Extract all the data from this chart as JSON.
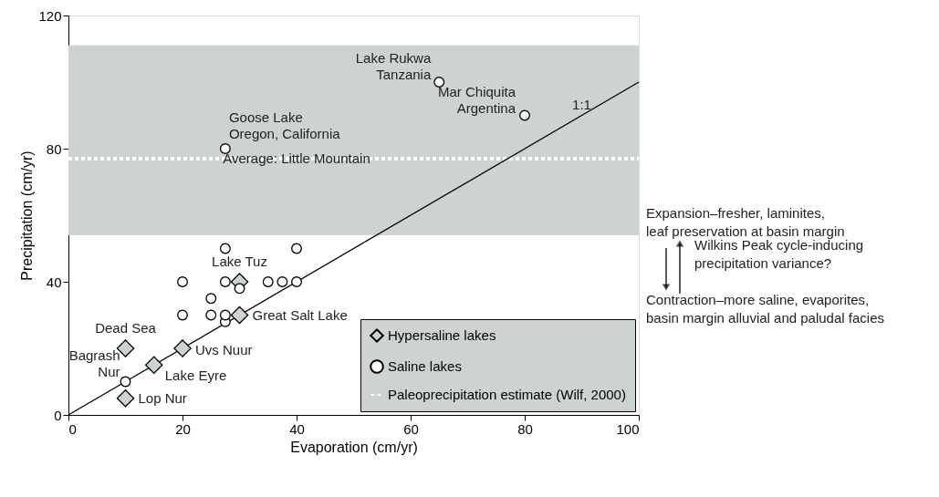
{
  "chart_data": {
    "type": "scatter",
    "xlabel": "Evaporation (cm/yr)",
    "ylabel": "Precipitation (cm/yr)",
    "xlim": [
      0,
      100
    ],
    "ylim": [
      0,
      120
    ],
    "xticks": [
      0,
      20,
      40,
      60,
      80,
      100
    ],
    "yticks": [
      0,
      40,
      80,
      120
    ],
    "grid": false,
    "legend": "bottom right",
    "series": [
      {
        "name": "Hypersaline lakes",
        "type": "scatter",
        "marker": "diamond",
        "color": "#cdd2d2",
        "x": [
          30,
          30,
          10,
          20,
          15,
          10
        ],
        "values": [
          40,
          30,
          20,
          20,
          15,
          5
        ]
      },
      {
        "name": "Saline lakes",
        "type": "scatter",
        "marker": "circle",
        "color": "#ffffff",
        "x": [
          27.5,
          40,
          20,
          27.5,
          35,
          37.5,
          40,
          30,
          25,
          20,
          25,
          27.5,
          27.5,
          10,
          27.5,
          65,
          80
        ],
        "values": [
          50,
          50,
          40,
          40,
          40,
          40,
          40,
          38,
          35,
          30,
          30,
          28,
          30,
          10,
          80,
          100,
          90
        ]
      },
      {
        "name": "Paleoprecipitation estimate (Wilf, 2000)",
        "type": "line",
        "line_style": "dotted",
        "color": "#ffffff",
        "x": [
          0,
          100
        ],
        "values": [
          77,
          77
        ]
      },
      {
        "type": "line",
        "line_style": "solid",
        "color": "#000000",
        "x": [
          0,
          100
        ],
        "values": [
          0,
          100
        ]
      }
    ],
    "bands": [
      {
        "axis": "y",
        "from": 54,
        "to": 111,
        "color": "#cdd2d2"
      }
    ],
    "annotations": [
      {
        "text": "Lake Rukwa\nTanzania",
        "x": 65,
        "y": 100
      },
      {
        "text": "Mar Chiquita\nArgentina",
        "x": 80,
        "y": 90
      },
      {
        "text": "Goose Lake\nOregon, California",
        "x": 27.5,
        "y": 80
      },
      {
        "text": "Average: Little Mountain",
        "x": 40,
        "y": 77
      },
      {
        "text": "Lake Tuz",
        "x": 30,
        "y": 40
      },
      {
        "text": "Great Salt Lake",
        "x": 30,
        "y": 30
      },
      {
        "text": "Dead Sea",
        "x": 10,
        "y": 20
      },
      {
        "text": "Uvs Nuur",
        "x": 20,
        "y": 20
      },
      {
        "text": "Lake Eyre",
        "x": 15,
        "y": 15
      },
      {
        "text": "Bagrash\nNur",
        "x": 10,
        "y": 10
      },
      {
        "text": "Lop Nur",
        "x": 10,
        "y": 5
      },
      {
        "text": "1:1",
        "x": 90,
        "y": 90
      },
      "Expansion–fresher, laminites,\nleaf preservation at basin margin",
      "Wilkins Peak cycle-inducing\nprecipitation variance?",
      "Contraction–more saline, evaporites,\nbasin margin alluvial and paludal facies"
    ]
  }
}
